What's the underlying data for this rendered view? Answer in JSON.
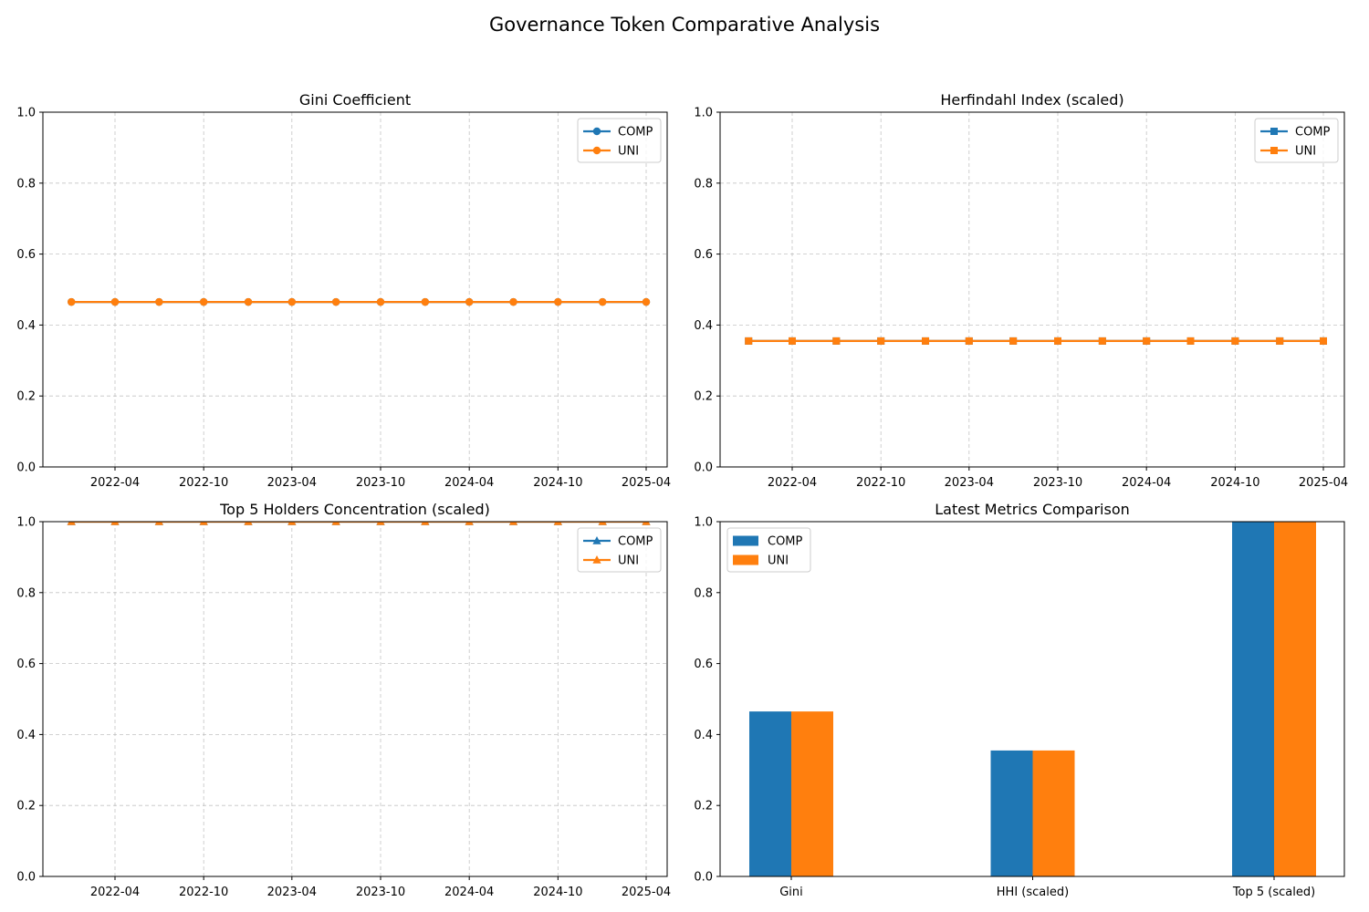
{
  "figure": {
    "title": "Governance Token Comparative Analysis"
  },
  "colors": {
    "COMP": "#1f77b4",
    "UNI": "#ff7f0e",
    "grid": "#b0b0b0"
  },
  "chart_data": [
    {
      "type": "line",
      "title": "Gini Coefficient",
      "marker": "circle",
      "x": [
        "2022-01-01",
        "2022-04-01",
        "2022-07-01",
        "2022-10-01",
        "2023-01-01",
        "2023-04-01",
        "2023-07-01",
        "2023-10-01",
        "2024-01-01",
        "2024-04-01",
        "2024-07-01",
        "2024-10-01",
        "2025-01-01",
        "2025-04-01"
      ],
      "x_ticks": [
        "2022-04",
        "2022-10",
        "2023-04",
        "2023-10",
        "2024-04",
        "2024-10",
        "2025-04"
      ],
      "y_ticks": [
        "0.0",
        "0.2",
        "0.4",
        "0.6",
        "0.8",
        "1.0"
      ],
      "ylim": [
        0,
        1
      ],
      "grid": true,
      "legend": "top-right",
      "series": [
        {
          "name": "COMP",
          "values": [
            0.465,
            0.465,
            0.465,
            0.465,
            0.465,
            0.465,
            0.465,
            0.465,
            0.465,
            0.465,
            0.465,
            0.465,
            0.465,
            0.465
          ]
        },
        {
          "name": "UNI",
          "values": [
            0.465,
            0.465,
            0.465,
            0.465,
            0.465,
            0.465,
            0.465,
            0.465,
            0.465,
            0.465,
            0.465,
            0.465,
            0.465,
            0.465
          ]
        }
      ]
    },
    {
      "type": "line",
      "title": "Herfindahl Index (scaled)",
      "marker": "square",
      "x": [
        "2022-01-01",
        "2022-04-01",
        "2022-07-01",
        "2022-10-01",
        "2023-01-01",
        "2023-04-01",
        "2023-07-01",
        "2023-10-01",
        "2024-01-01",
        "2024-04-01",
        "2024-07-01",
        "2024-10-01",
        "2025-01-01",
        "2025-04-01"
      ],
      "x_ticks": [
        "2022-04",
        "2022-10",
        "2023-04",
        "2023-10",
        "2024-04",
        "2024-10",
        "2025-04"
      ],
      "y_ticks": [
        "0.0",
        "0.2",
        "0.4",
        "0.6",
        "0.8",
        "1.0"
      ],
      "ylim": [
        0,
        1
      ],
      "grid": true,
      "legend": "top-right",
      "series": [
        {
          "name": "COMP",
          "values": [
            0.355,
            0.355,
            0.355,
            0.355,
            0.355,
            0.355,
            0.355,
            0.355,
            0.355,
            0.355,
            0.355,
            0.355,
            0.355,
            0.355
          ]
        },
        {
          "name": "UNI",
          "values": [
            0.355,
            0.355,
            0.355,
            0.355,
            0.355,
            0.355,
            0.355,
            0.355,
            0.355,
            0.355,
            0.355,
            0.355,
            0.355,
            0.355
          ]
        }
      ]
    },
    {
      "type": "line",
      "title": "Top 5 Holders Concentration (scaled)",
      "marker": "triangle",
      "x": [
        "2022-01-01",
        "2022-04-01",
        "2022-07-01",
        "2022-10-01",
        "2023-01-01",
        "2023-04-01",
        "2023-07-01",
        "2023-10-01",
        "2024-01-01",
        "2024-04-01",
        "2024-07-01",
        "2024-10-01",
        "2025-01-01",
        "2025-04-01"
      ],
      "x_ticks": [
        "2022-04",
        "2022-10",
        "2023-04",
        "2023-10",
        "2024-04",
        "2024-10",
        "2025-04"
      ],
      "y_ticks": [
        "0.0",
        "0.2",
        "0.4",
        "0.6",
        "0.8",
        "1.0"
      ],
      "ylim": [
        0,
        1
      ],
      "grid": true,
      "legend": "top-right",
      "series": [
        {
          "name": "COMP",
          "values": [
            1.0,
            1.0,
            1.0,
            1.0,
            1.0,
            1.0,
            1.0,
            1.0,
            1.0,
            1.0,
            1.0,
            1.0,
            1.0,
            1.0
          ]
        },
        {
          "name": "UNI",
          "values": [
            1.0,
            1.0,
            1.0,
            1.0,
            1.0,
            1.0,
            1.0,
            1.0,
            1.0,
            1.0,
            1.0,
            1.0,
            1.0,
            1.0
          ]
        }
      ]
    },
    {
      "type": "bar",
      "title": "Latest Metrics Comparison",
      "categories": [
        "Gini",
        "HHI (scaled)",
        "Top 5 (scaled)"
      ],
      "y_ticks": [
        "0.0",
        "0.2",
        "0.4",
        "0.6",
        "0.8",
        "1.0"
      ],
      "ylim": [
        0,
        1
      ],
      "grid": false,
      "legend": "top-left",
      "series": [
        {
          "name": "COMP",
          "values": [
            0.465,
            0.355,
            1.0
          ]
        },
        {
          "name": "UNI",
          "values": [
            0.465,
            0.355,
            1.0
          ]
        }
      ]
    }
  ]
}
